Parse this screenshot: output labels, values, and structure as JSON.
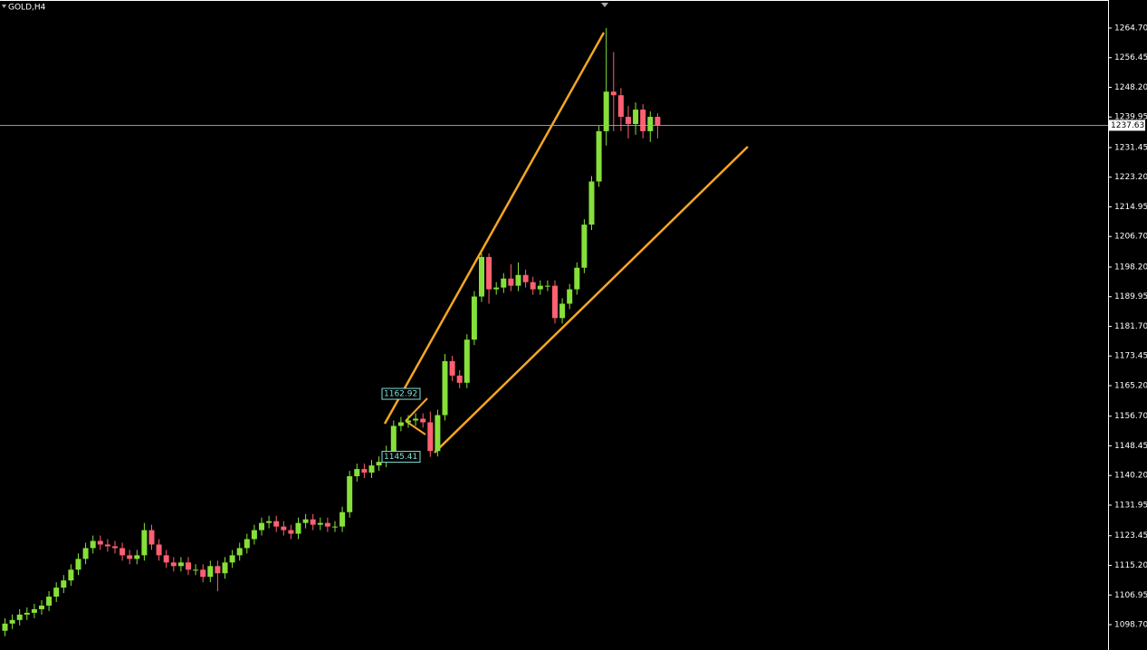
{
  "chart_data": {
    "type": "candlestick",
    "title": "GOLD,H4",
    "up_color": "#86e03a",
    "down_color": "#ff5f72",
    "ylim": [
      1091.65,
      1272.5
    ],
    "yticks": [
      {
        "value": 1264.7,
        "label": "1264.70"
      },
      1256.45,
      {
        "value": 1248.2,
        "label": "1248.20"
      },
      1239.95,
      1231.45,
      {
        "value": 1223.2,
        "label": "1223.20"
      },
      1214.95,
      {
        "value": 1206.7,
        "label": "1206.70"
      },
      {
        "value": 1198.2,
        "label": "1198.20"
      },
      1189.95,
      {
        "value": 1181.7,
        "label": "1181.70"
      },
      1173.45,
      {
        "value": 1165.2,
        "label": "1165.20"
      },
      {
        "value": 1156.7,
        "label": "1156.70"
      },
      1148.45,
      {
        "value": 1140.2,
        "label": "1140.20"
      },
      1131.95,
      1123.45,
      {
        "value": 1115.2,
        "label": "1115.20"
      },
      1106.95,
      {
        "value": 1098.7,
        "label": "1098.70"
      }
    ],
    "current_price": 1237.63,
    "annotations": [
      1162.92,
      1145.41
    ],
    "open": [
      1097,
      1099,
      1100,
      1101.5,
      1102,
      1103,
      1104,
      1106.5,
      1109,
      1111,
      1114,
      1117,
      1120,
      1122,
      1121,
      1120.5,
      1120,
      1118,
      1117,
      1118,
      1125,
      1121,
      1118,
      1116,
      1115,
      1116,
      1114,
      1114,
      1112,
      1115,
      1113,
      1116,
      1118,
      1120,
      1122.5,
      1125,
      1127,
      1127.5,
      1126,
      1125,
      1124,
      1127,
      1128,
      1126.5,
      1127,
      1126,
      1126,
      1130,
      1140,
      1142,
      1141,
      1143,
      1144,
      1147,
      1154,
      1155,
      1155.5,
      1156,
      1155,
      1147,
      1157,
      1172,
      1168,
      1166,
      1178,
      1190,
      1201,
      1192,
      1192.5,
      1195,
      1193,
      1196,
      1194,
      1192,
      1193,
      1193,
      1184,
      1188,
      1192,
      1198,
      1210,
      1222,
      1236,
      1247,
      1246,
      1240,
      1238,
      1242,
      1236,
      1240
    ],
    "high": [
      1100.5,
      1101.5,
      1103,
      1103.5,
      1104.5,
      1105.5,
      1108,
      1110.5,
      1112.5,
      1115.5,
      1118.5,
      1121.5,
      1123.5,
      1123.5,
      1122.5,
      1122,
      1121.5,
      1119.5,
      1119.5,
      1127,
      1126.5,
      1122.5,
      1119.5,
      1117.5,
      1117.5,
      1117.5,
      1115.5,
      1115.5,
      1116.5,
      1116.5,
      1117.5,
      1119.5,
      1121.5,
      1124,
      1126.5,
      1128.5,
      1129,
      1129,
      1127.5,
      1126.5,
      1128.5,
      1129.5,
      1129.5,
      1128.5,
      1128.5,
      1127.5,
      1131.5,
      1141.5,
      1143.5,
      1143.5,
      1144.5,
      1145.5,
      1148.5,
      1155.5,
      1156.5,
      1157,
      1157.5,
      1157.5,
      1158,
      1158.5,
      1174,
      1173.5,
      1169.5,
      1179.5,
      1191.5,
      1202,
      1202,
      1194,
      1196.5,
      1199,
      1199.5,
      1197.5,
      1195.5,
      1194.5,
      1194.5,
      1194.5,
      1189.5,
      1193.5,
      1199.5,
      1211.5,
      1223.5,
      1237.5,
      1264.7,
      1258,
      1248,
      1243,
      1244,
      1243.5,
      1241.5,
      1241
    ],
    "low": [
      1095.5,
      1097.5,
      1098.5,
      1100,
      1100.5,
      1101.5,
      1102.5,
      1105,
      1107.5,
      1109.5,
      1112.5,
      1115.5,
      1118.5,
      1119.5,
      1119,
      1118.5,
      1116.5,
      1115.5,
      1115.5,
      1116.5,
      1119.5,
      1116.5,
      1114.5,
      1113.5,
      1113.5,
      1112.5,
      1112.5,
      1110.5,
      1110.5,
      1108,
      1111.5,
      1114.5,
      1116.5,
      1118.5,
      1121,
      1123.5,
      1125.5,
      1124.5,
      1123.5,
      1122.5,
      1122.5,
      1125.5,
      1125,
      1125,
      1124.5,
      1124.5,
      1124.5,
      1128.5,
      1138.5,
      1139.5,
      1139.5,
      1141.5,
      1142.5,
      1145.5,
      1152.5,
      1153.5,
      1154,
      1153.5,
      1145.4,
      1145.5,
      1155.5,
      1166.5,
      1164.5,
      1164.5,
      1176.5,
      1188.5,
      1188,
      1190.5,
      1191,
      1191.5,
      1191.5,
      1192.5,
      1190.5,
      1190.5,
      1191.5,
      1182.5,
      1182.5,
      1186.5,
      1190.5,
      1196.5,
      1208.5,
      1220.5,
      1232,
      1236,
      1236,
      1234,
      1235,
      1234,
      1233,
      1234
    ],
    "close": [
      1099,
      1100,
      1101.5,
      1102,
      1103,
      1104,
      1106.5,
      1109,
      1111,
      1114,
      1117,
      1120,
      1122,
      1121,
      1120.5,
      1120,
      1118,
      1117,
      1118,
      1125,
      1121,
      1118,
      1116,
      1115,
      1116,
      1114,
      1114,
      1112,
      1115,
      1113,
      1116,
      1118,
      1120,
      1122.5,
      1125,
      1127,
      1127.5,
      1126,
      1125,
      1124,
      1127,
      1128,
      1126.5,
      1127,
      1126,
      1126,
      1130,
      1140,
      1142,
      1141,
      1143,
      1144,
      1147,
      1154,
      1155,
      1155.5,
      1156,
      1155,
      1147,
      1157,
      1172,
      1168,
      1166,
      1178,
      1190,
      1201,
      1192,
      1192.5,
      1195,
      1193,
      1196,
      1194,
      1192,
      1193,
      1193,
      1184,
      1188,
      1192,
      1198,
      1210,
      1222,
      1236,
      1247,
      1246,
      1240,
      1238,
      1242,
      1236,
      1240,
      1237.6
    ]
  }
}
